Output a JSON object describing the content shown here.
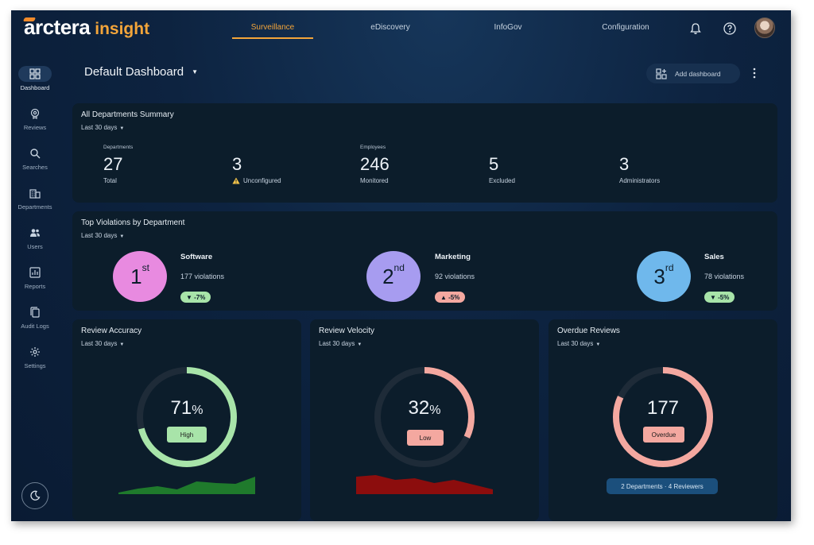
{
  "app": {
    "logo_text": "arctera",
    "logo_sub": "insight",
    "brand_accent": "#f3a53a"
  },
  "nav": {
    "tabs": [
      {
        "label": "Surveillance",
        "active": true
      },
      {
        "label": "eDiscovery"
      },
      {
        "label": "InfoGov"
      },
      {
        "label": "Configuration"
      }
    ],
    "icons": [
      "bell-icon",
      "help-icon"
    ]
  },
  "sidebar": {
    "items": [
      {
        "label": "Dashboard",
        "icon": "grid-icon",
        "active": true
      },
      {
        "label": "Reviews",
        "icon": "review-icon"
      },
      {
        "label": "Searches",
        "icon": "search-icon"
      },
      {
        "label": "Departments",
        "icon": "building-icon"
      },
      {
        "label": "Users",
        "icon": "users-icon"
      },
      {
        "label": "Reports",
        "icon": "chart-icon"
      },
      {
        "label": "Audit Logs",
        "icon": "copy-icon"
      },
      {
        "label": "Settings",
        "icon": "gear-icon"
      }
    ],
    "theme_icon": "moon-icon"
  },
  "header": {
    "title": "Default Dashboard",
    "add_label": "Add dashboard"
  },
  "summary": {
    "title": "All Departments Summary",
    "range": "Last 30 days",
    "stats": [
      {
        "caption": "Departments",
        "value": "27",
        "sub": "Total"
      },
      {
        "caption": "",
        "value": "3",
        "sub": "Unconfigured",
        "warning": true
      },
      {
        "caption": "Employees",
        "value": "246",
        "sub": "Monitored"
      },
      {
        "caption": "",
        "value": "5",
        "sub": "Excluded"
      },
      {
        "caption": "",
        "value": "3",
        "sub": "Administrators"
      }
    ]
  },
  "violations": {
    "title": "Top Violations by Department",
    "range": "Last 30 days",
    "items": [
      {
        "rank": "1",
        "suffix": "st",
        "dept": "Software",
        "count": "177 violations",
        "trend": "-7%",
        "direction": "down",
        "color": "#e88ae0"
      },
      {
        "rank": "2",
        "suffix": "nd",
        "dept": "Marketing",
        "count": "92 violations",
        "trend": "-5%",
        "direction": "up",
        "color": "#a79cf0"
      },
      {
        "rank": "3",
        "suffix": "rd",
        "dept": "Sales",
        "count": "78 violations",
        "trend": "-5%",
        "direction": "down",
        "color": "#6fb8ec"
      }
    ]
  },
  "gauges": [
    {
      "title": "Review Accuracy",
      "range": "Last 30 days",
      "value": "71",
      "unit": "%",
      "fraction": 0.71,
      "badge": "High",
      "color": "#a8e4a9",
      "trend_color": "#1f7a2c",
      "trend": [
        2,
        7,
        10,
        6,
        16,
        14,
        13,
        22
      ]
    },
    {
      "title": "Review Velocity",
      "range": "Last 30 days",
      "value": "32",
      "unit": "%",
      "fraction": 0.32,
      "badge": "Low",
      "color": "#f4a8a0",
      "trend_color": "#8c0d0d",
      "trend": [
        22,
        24,
        18,
        20,
        14,
        18,
        12,
        6
      ]
    },
    {
      "title": "Overdue Reviews",
      "range": "Last 30 days",
      "value": "177",
      "unit": "",
      "fraction": 0.82,
      "badge": "Overdue",
      "color": "#f4a8a0",
      "info": "2 Departments · 4 Reviewers"
    }
  ]
}
